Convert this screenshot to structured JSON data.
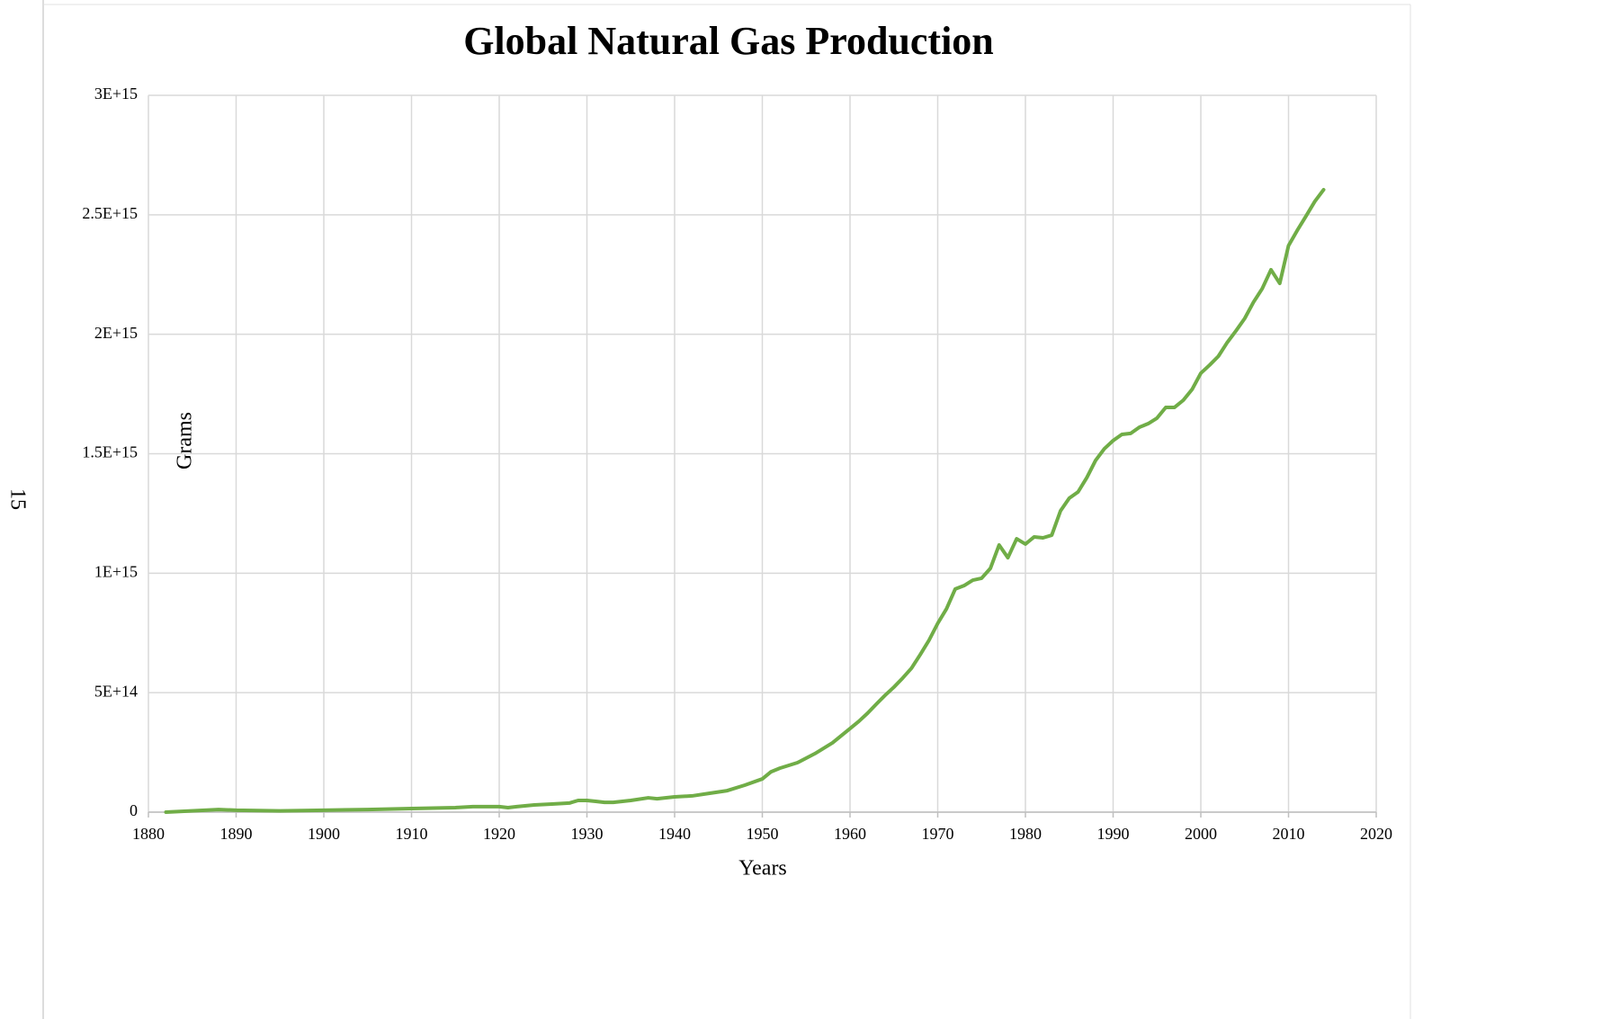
{
  "page_number": "15",
  "chart_data": {
    "type": "line",
    "title": "Global Natural Gas Production",
    "x_label": "Years",
    "y_label": "Grams",
    "x": [
      1882,
      1888,
      1890,
      1895,
      1900,
      1905,
      1910,
      1915,
      1917,
      1920,
      1921,
      1922,
      1924,
      1926,
      1928,
      1929,
      1930,
      1931,
      1932,
      1933,
      1935,
      1937,
      1938,
      1940,
      1942,
      1944,
      1946,
      1948,
      1950,
      1951,
      1952,
      1954,
      1956,
      1958,
      1960,
      1961,
      1962,
      1963,
      1964,
      1965,
      1966,
      1967,
      1968,
      1969,
      1970,
      1971,
      1972,
      1973,
      1974,
      1975,
      1976,
      1977,
      1978,
      1979,
      1980,
      1981,
      1982,
      1983,
      1984,
      1985,
      1986,
      1987,
      1988,
      1989,
      1990,
      1991,
      1992,
      1993,
      1994,
      1995,
      1996,
      1997,
      1998,
      1999,
      2000,
      2001,
      2002,
      2003,
      2004,
      2005,
      2006,
      2007,
      2008,
      2009,
      2010,
      2011,
      2012,
      2013,
      2014
    ],
    "series": [
      {
        "name": "Global Natural Gas Production",
        "color": "#70ad47",
        "values": [
          0,
          11000000000000.0,
          8000000000000.0,
          5000000000000.0,
          8000000000000.0,
          11000000000000.0,
          15000000000000.0,
          19000000000000.0,
          23000000000000.0,
          23000000000000.0,
          19000000000000.0,
          23000000000000.0,
          30000000000000.0,
          34000000000000.0,
          38000000000000.0,
          49000000000000.0,
          49000000000000.0,
          45000000000000.0,
          41000000000000.0,
          41000000000000.0,
          49000000000000.0,
          60000000000000.0,
          56000000000000.0,
          64000000000000.0,
          68000000000000.0,
          79000000000000.0,
          90000000000000.0,
          113000000000000.0,
          139000000000000.0,
          169000000000000.0,
          184000000000000.0,
          207000000000000.0,
          245000000000000.0,
          290000000000000.0,
          350000000000000.0,
          380000000000000.0,
          414000000000000.0,
          452000000000000.0,
          489000000000000.0,
          523000000000000.0,
          561000000000000.0,
          602000000000000.0,
          659000000000000.0,
          719000000000000.0,
          790000000000000.0,
          851000000000000.0,
          934000000000000.0,
          948000000000000.0,
          971000000000000.0,
          979000000000000.0,
          1020000000000000.0,
          1118000000000000.0,
          1065000000000000.0,
          1144000000000000.0,
          1122000000000000.0,
          1152000000000000.0,
          1148000000000000.0,
          1159000000000000.0,
          1261000000000000.0,
          1314000000000000.0,
          1340000000000000.0,
          1400000000000000.0,
          1472000000000000.0,
          1521000000000000.0,
          1555000000000000.0,
          1581000000000000.0,
          1585000000000000.0,
          1611000000000000.0,
          1626000000000000.0,
          1649000000000000.0,
          1694000000000000.0,
          1694000000000000.0,
          1724000000000000.0,
          1769000000000000.0,
          1837000000000000.0,
          1871000000000000.0,
          1908000000000000.0,
          1965000000000000.0,
          2014000000000000.0,
          2066000000000000.0,
          2134000000000000.0,
          2191000000000000.0,
          2270000000000000.0,
          2213000000000000.0,
          2371000000000000.0,
          2435000000000000.0,
          2495000000000000.0,
          2556000000000000.0,
          2605000000000000.0
        ]
      }
    ],
    "xlim": [
      1880,
      2020
    ],
    "xticks": [
      1880,
      1890,
      1900,
      1910,
      1920,
      1930,
      1940,
      1950,
      1960,
      1970,
      1980,
      1990,
      2000,
      2010,
      2020
    ],
    "ylim": [
      0,
      3000000000000000.0
    ],
    "yticks": [
      0,
      {
        "value": 500000000000000.0,
        "label": "5E+14"
      },
      {
        "value": 1000000000000000.0,
        "label": "1E+15"
      },
      {
        "value": 1500000000000000.0,
        "label": "1.5E+15"
      },
      {
        "value": 2000000000000000.0,
        "label": "2E+15"
      },
      {
        "value": 2500000000000000.0,
        "label": "2.5E+15"
      },
      {
        "value": 3000000000000000.0,
        "label": "3E+15"
      }
    ],
    "grid": true
  }
}
